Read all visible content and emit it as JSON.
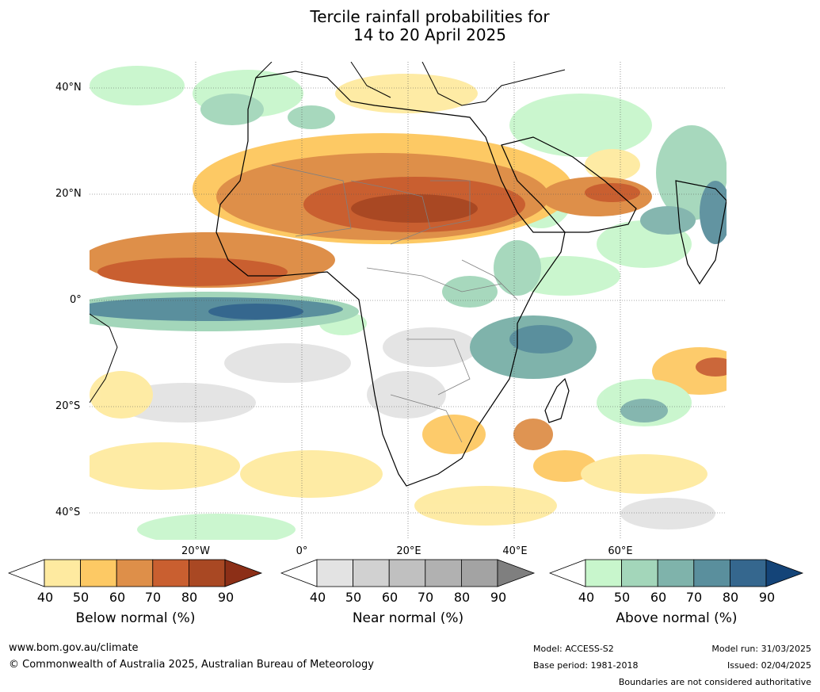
{
  "title": {
    "line1": "Tercile rainfall probabilities for",
    "line2": "14 to 20 April 2025"
  },
  "map": {
    "lat_labels": [
      "40°N",
      "20°N",
      "0°",
      "20°S",
      "40°S"
    ],
    "lon_labels": [
      "20°W",
      "0°",
      "20°E",
      "40°E",
      "60°E"
    ]
  },
  "colorbars": [
    {
      "id": "below",
      "label": "Below normal (%)",
      "ticks": [
        "40",
        "50",
        "60",
        "70",
        "80",
        "90"
      ],
      "colors": [
        "#ffffff",
        "#feeaa0",
        "#fdc964",
        "#de8f49",
        "#c95f30",
        "#a94823",
        "#8c2f17"
      ]
    },
    {
      "id": "near",
      "label": "Near normal (%)",
      "ticks": [
        "40",
        "50",
        "60",
        "70",
        "80",
        "90"
      ],
      "colors": [
        "#ffffff",
        "#e3e3e3",
        "#d1d1d1",
        "#c0c0c0",
        "#b1b1b1",
        "#a3a3a3",
        "#7f7f7f"
      ]
    },
    {
      "id": "above",
      "label": "Above normal (%)",
      "ticks": [
        "40",
        "50",
        "60",
        "70",
        "80",
        "90"
      ],
      "colors": [
        "#ffffff",
        "#c8f6cc",
        "#a3d6ba",
        "#7fb3ab",
        "#5a8f9d",
        "#35678e",
        "#144478"
      ]
    }
  ],
  "footer": {
    "website": "www.bom.gov.au/climate",
    "copyright": "© Commonwealth of Australia 2025, Australian Bureau of Meteorology",
    "model": "Model: ACCESS-S2",
    "base_period": "Base period: 1981-2018",
    "model_run": "Model run: 31/03/2025",
    "issued": "Issued: 02/04/2025",
    "disclaimer": "Boundaries are not considered authoritative"
  }
}
